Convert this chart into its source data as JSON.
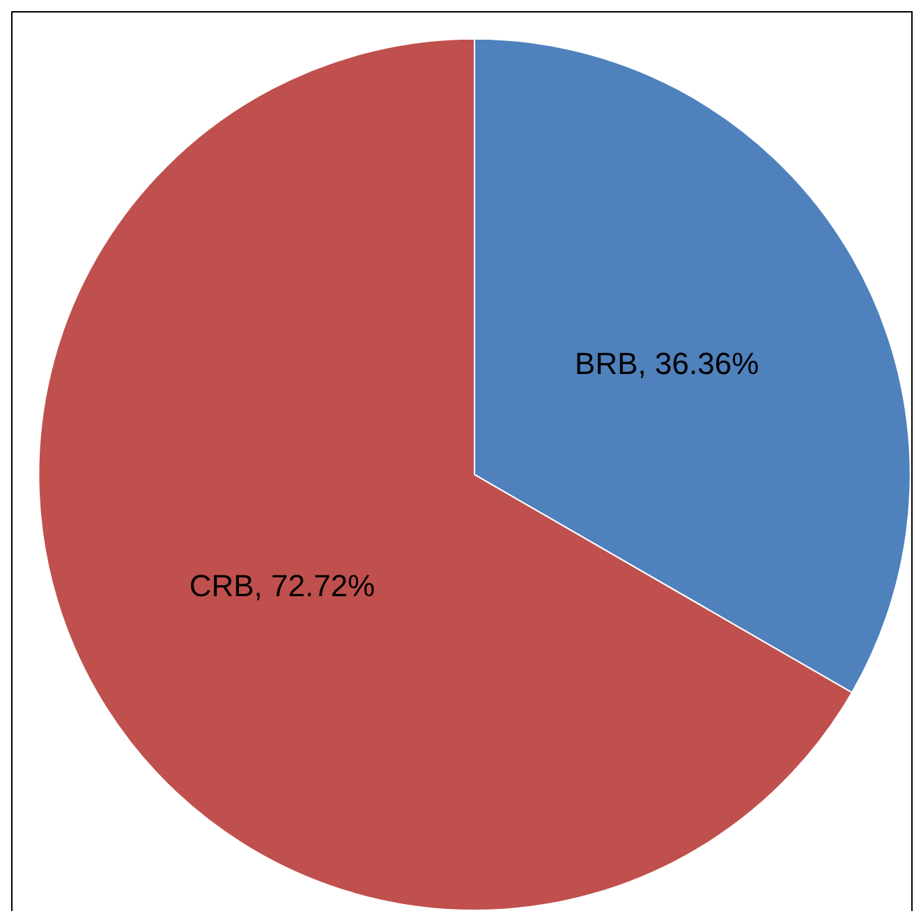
{
  "chart_data": {
    "type": "pie",
    "categories": [
      "BRB",
      "CRB"
    ],
    "values": [
      36.36,
      72.72
    ],
    "colors": [
      "#4f81bd",
      "#c0504d"
    ],
    "value_labels": [
      "36.36%",
      "72.72%"
    ],
    "legend": false
  }
}
